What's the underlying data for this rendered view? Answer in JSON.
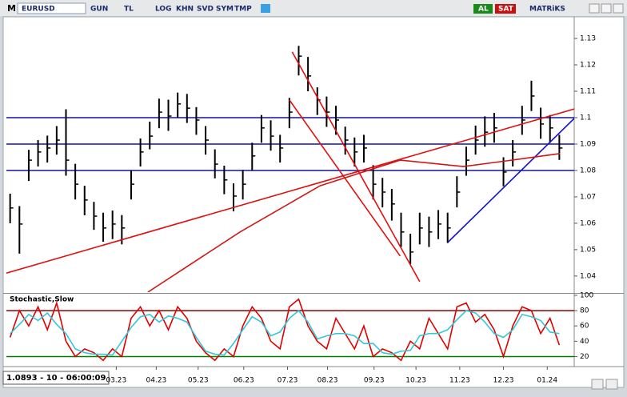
{
  "toolbar": {
    "logo": "M",
    "symbol": "EURUSD",
    "buttons": [
      "GUN",
      "TL",
      "LOG",
      "KHN",
      "SVD",
      "SYM",
      "TMP"
    ],
    "buy": "AL",
    "sell": "SAT",
    "brand": "MATRiKS"
  },
  "status": "1.0893 - 10 - 06:00:09",
  "chart_data": [
    {
      "type": "ohlc",
      "xlim": [
        0,
        61
      ],
      "ylim": [
        1.0339,
        1.1379
      ],
      "yticks": [
        1.13,
        1.12,
        1.11,
        1.1,
        1.09,
        1.08,
        1.07,
        1.06,
        1.05,
        1.04
      ],
      "color": "#000000",
      "high": [
        1.0712,
        1.0665,
        1.0878,
        1.0915,
        1.0932,
        1.0968,
        1.1032,
        1.0825,
        1.0742,
        1.0681,
        1.064,
        1.0648,
        1.0631,
        1.0801,
        1.0921,
        1.0985,
        1.1072,
        1.1068,
        1.1095,
        1.109,
        1.104,
        1.0968,
        1.088,
        1.0818,
        1.0751,
        1.0802,
        1.0905,
        1.101,
        1.099,
        1.0935,
        1.1075,
        1.1272,
        1.123,
        1.1115,
        1.108,
        1.1045,
        1.0966,
        1.0925,
        1.0935,
        1.082,
        1.0772,
        1.073,
        1.064,
        1.056,
        1.064,
        1.0625,
        1.065,
        1.064,
        1.0778,
        1.089,
        1.097,
        1.1005,
        1.1018,
        1.085,
        1.0915,
        1.1045,
        1.114,
        1.1038,
        1.101,
        1.0935
      ],
      "low": [
        1.06,
        1.0485,
        1.076,
        1.0815,
        1.083,
        1.086,
        1.078,
        1.069,
        1.063,
        1.0575,
        1.053,
        1.054,
        1.052,
        1.069,
        1.0815,
        1.088,
        1.096,
        1.095,
        1.1,
        1.098,
        1.0935,
        1.086,
        1.077,
        1.071,
        1.0645,
        1.069,
        1.08,
        1.0905,
        1.0875,
        1.083,
        1.096,
        1.116,
        1.11,
        1.101,
        1.0965,
        1.0935,
        1.086,
        1.0815,
        1.083,
        1.069,
        1.066,
        1.061,
        1.051,
        1.0445,
        1.052,
        1.051,
        1.054,
        1.0525,
        1.066,
        1.078,
        1.086,
        1.089,
        1.0905,
        1.074,
        1.0815,
        1.0935,
        1.1025,
        1.092,
        1.0905,
        1.084
      ],
      "close": [
        1.0658,
        1.0597,
        1.0839,
        1.087,
        1.0885,
        1.0915,
        1.0839,
        1.0748,
        1.0688,
        1.0627,
        1.0582,
        1.0597,
        1.0582,
        1.0748,
        1.087,
        1.093,
        1.1021,
        1.1006,
        1.1052,
        1.1036,
        1.0991,
        1.0915,
        1.0824,
        1.0764,
        1.0703,
        1.0748,
        1.0855,
        1.0961,
        1.093,
        1.0885,
        1.1021,
        1.1233,
        1.1158,
        1.1067,
        1.1021,
        1.0991,
        1.0915,
        1.087,
        1.0885,
        1.0748,
        1.0718,
        1.0673,
        1.0567,
        1.0491,
        1.0582,
        1.0567,
        1.0597,
        1.0582,
        1.0718,
        1.0839,
        1.0915,
        1.0945,
        1.0961,
        1.0794,
        1.087,
        1.0991,
        1.1082,
        1.0976,
        1.0961,
        1.0885
      ],
      "levels": [
        1.1,
        1.09,
        1.08
      ],
      "level_colors": [
        "#1414a0",
        "#1414a0",
        "#1414a0"
      ],
      "lines": [
        {
          "color": "#e01010",
          "x": [
            0,
            61
          ],
          "y": [
            1.0411,
            1.1033
          ]
        },
        {
          "color": "#e01010",
          "x": [
            30.7,
            44.4
          ],
          "y": [
            1.1249,
            1.0379
          ]
        },
        {
          "color": "#e01010",
          "x": [
            30.4,
            42.3
          ],
          "y": [
            1.1067,
            1.0476
          ]
        },
        {
          "color": "#1414c8",
          "x": [
            47.4,
            61
          ],
          "y": [
            1.0527,
            1.0997
          ]
        },
        {
          "color": "#d01818",
          "x": [
            15.2,
            25.1,
            33.7,
            42.3,
            49.1,
            54.3,
            59.5
          ],
          "y": [
            1.0339,
            1.0567,
            1.0742,
            1.0839,
            1.0815,
            1.0839,
            1.0864
          ]
        }
      ]
    },
    {
      "type": "line",
      "title": "Stochastic,Slow",
      "xlim": [
        0,
        61
      ],
      "ylim": [
        10,
        101
      ],
      "yticks": [
        20,
        40,
        60,
        80,
        100
      ],
      "levels": [
        80,
        20
      ],
      "level_colors": [
        "#8b0000",
        "#008000"
      ],
      "xticks": [
        {
          "value": 11.8,
          "label": "03.23"
        },
        {
          "value": 16.1,
          "label": "04.23"
        },
        {
          "value": 20.6,
          "label": "05.23"
        },
        {
          "value": 25.5,
          "label": "06.23"
        },
        {
          "value": 30.2,
          "label": "07.23"
        },
        {
          "value": 34.5,
          "label": "08.23"
        },
        {
          "value": 39.5,
          "label": "09.23"
        },
        {
          "value": 44,
          "label": "10.23"
        },
        {
          "value": 48.7,
          "label": "11.23"
        },
        {
          "value": 53.4,
          "label": "12.23"
        },
        {
          "value": 58.1,
          "label": "01.24"
        }
      ],
      "series": [
        {
          "color": "#e00000",
          "values": [
            45,
            80,
            60,
            85,
            55,
            90,
            40,
            20,
            30,
            25,
            15,
            30,
            20,
            70,
            85,
            60,
            80,
            55,
            85,
            70,
            40,
            25,
            15,
            30,
            20,
            60,
            85,
            70,
            40,
            30,
            85,
            95,
            60,
            40,
            30,
            70,
            50,
            30,
            60,
            20,
            30,
            25,
            15,
            40,
            30,
            70,
            50,
            30,
            85,
            90,
            65,
            75,
            55,
            20,
            60,
            85,
            80,
            50,
            70,
            35
          ]
        },
        {
          "color": "#30c8d8",
          "values": [
            50,
            62,
            75,
            67,
            77,
            62,
            50,
            30,
            25,
            23,
            23,
            22,
            40,
            58,
            72,
            75,
            65,
            73,
            70,
            65,
            45,
            27,
            23,
            22,
            37,
            55,
            72,
            65,
            47,
            52,
            70,
            80,
            65,
            43,
            47,
            50,
            50,
            47,
            37,
            37,
            25,
            23,
            27,
            28,
            47,
            50,
            50,
            55,
            68,
            80,
            77,
            65,
            50,
            45,
            55,
            75,
            72,
            67,
            52,
            50
          ]
        }
      ]
    }
  ]
}
